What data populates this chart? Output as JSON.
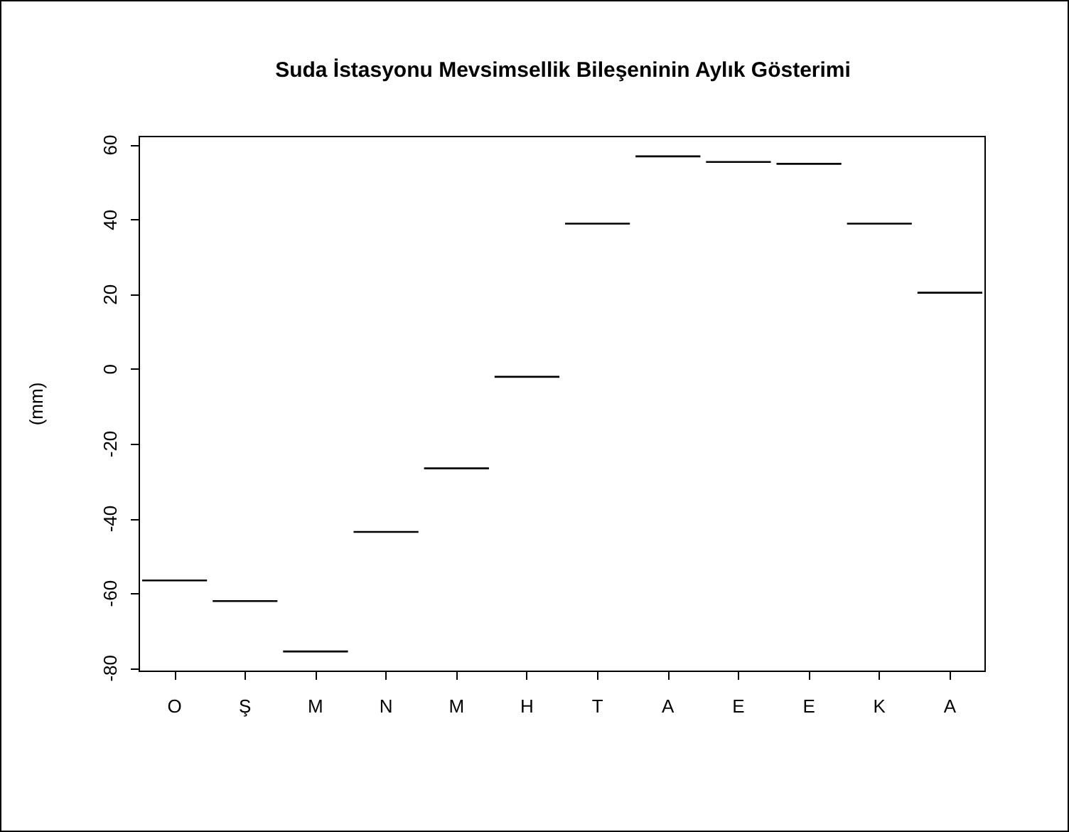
{
  "chart_data": {
    "type": "box",
    "title": "Suda İstasyonu Mevsimsellik Bileşeninin Aylık Gösterimi",
    "ylabel": "(mm)",
    "categories": [
      "O",
      "Ş",
      "M",
      "N",
      "M",
      "H",
      "T",
      "A",
      "E",
      "E",
      "K",
      "A"
    ],
    "boxes": [
      {
        "low": -56.5,
        "q1": -56.5,
        "median": -56.5,
        "q3": -56.5,
        "high": -56.5
      },
      {
        "low": -62,
        "q1": -62,
        "median": -62,
        "q3": -62,
        "high": -62
      },
      {
        "low": -75.5,
        "q1": -75.5,
        "median": -75.5,
        "q3": -75.5,
        "high": -75.5
      },
      {
        "low": -43.5,
        "q1": -43.5,
        "median": -43.5,
        "q3": -43.5,
        "high": -43.5
      },
      {
        "low": -26.5,
        "q1": -26.5,
        "median": -26.5,
        "q3": -26.5,
        "high": -26.5
      },
      {
        "low": -2,
        "q1": -2,
        "median": -2,
        "q3": -2,
        "high": -2
      },
      {
        "low": 39,
        "q1": 39,
        "median": 39,
        "q3": 39,
        "high": 39
      },
      {
        "low": 57,
        "q1": 57,
        "median": 57,
        "q3": 57,
        "high": 57
      },
      {
        "low": 55.5,
        "q1": 55.5,
        "median": 55.5,
        "q3": 55.5,
        "high": 55.5
      },
      {
        "low": 55,
        "q1": 55,
        "median": 55,
        "q3": 55,
        "high": 55
      },
      {
        "low": 39,
        "q1": 39,
        "median": 39,
        "q3": 39,
        "high": 39
      },
      {
        "low": 20.5,
        "q1": 20.5,
        "median": 20.5,
        "q3": 20.5,
        "high": 20.5
      }
    ],
    "color": "#000000",
    "ylim": [
      -80.8,
      62.3
    ],
    "yticks": [
      -80,
      -60,
      -40,
      -20,
      0,
      20,
      40,
      60
    ],
    "grid": false
  }
}
